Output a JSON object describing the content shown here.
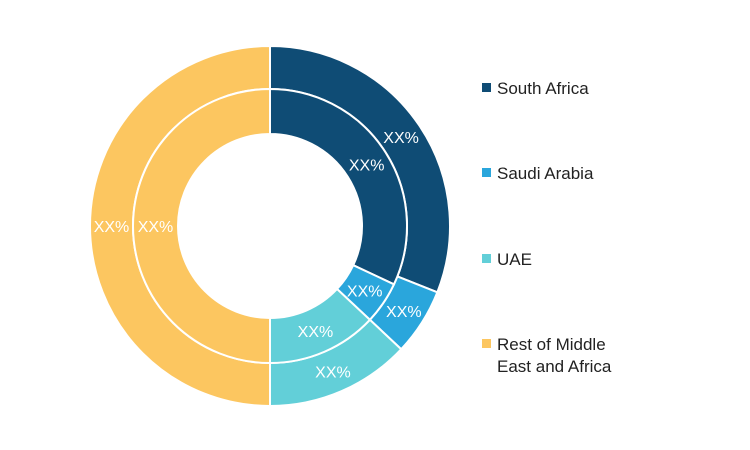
{
  "chart_data": {
    "type": "pie",
    "variant": "double-donut",
    "categories": [
      "South Africa",
      "Saudi Arabia",
      "UAE",
      "Rest of Middle East and Africa"
    ],
    "colors": [
      "#0f4c75",
      "#2aa6dc",
      "#62cfd8",
      "#fcc660"
    ],
    "series": [
      {
        "ring": "outer",
        "values": [
          31,
          6,
          13,
          50
        ],
        "labels": [
          "XX%",
          "XX%",
          "XX%",
          "XX%"
        ]
      },
      {
        "ring": "inner",
        "values": [
          32,
          5,
          13,
          50
        ],
        "labels": [
          "XX%",
          "XX%",
          "XX%",
          "XX%"
        ]
      }
    ],
    "legend": "right"
  },
  "legend": {
    "items": [
      {
        "label": "South Africa",
        "color": "#0f4c75"
      },
      {
        "label": "Saudi Arabia",
        "color": "#2aa6dc"
      },
      {
        "label": "UAE",
        "color": "#62cfd8"
      },
      {
        "label": "Rest of Middle\nEast and Africa",
        "color": "#fcc660"
      }
    ]
  }
}
